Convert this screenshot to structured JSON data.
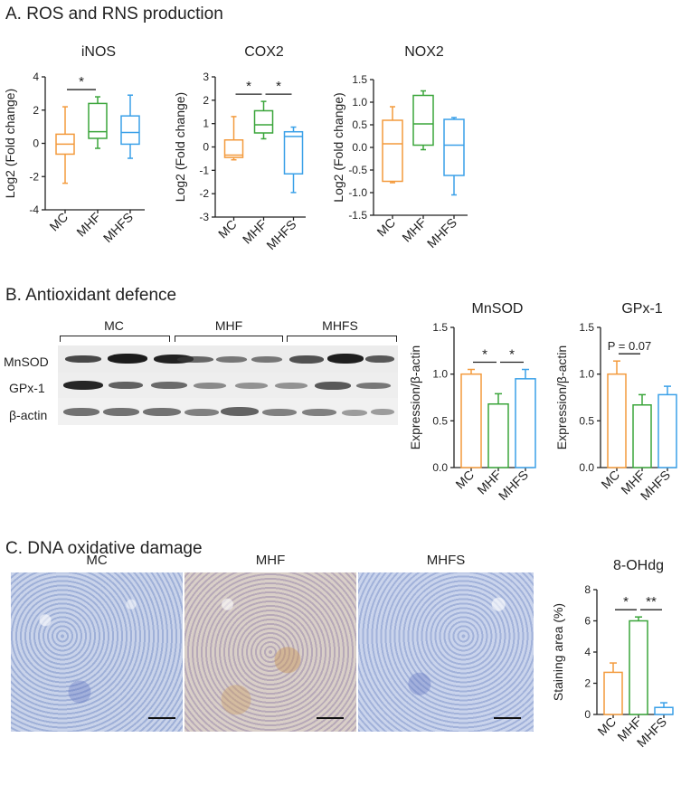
{
  "sections": {
    "a_title": "A. ROS and RNS production",
    "b_title": "B. Antioxidant defence",
    "c_title": "C. DNA oxidative damage"
  },
  "colors": {
    "MC": "#f39a3c",
    "MHF": "#3aa53a",
    "MHFS": "#3aa0e8"
  },
  "western_blot": {
    "groups": [
      "MC",
      "MHF",
      "MHFS"
    ],
    "rows": [
      "MnSOD",
      "GPx-1",
      "β-actin"
    ]
  },
  "micrographs": {
    "labels": [
      "MC",
      "MHF",
      "MHFS"
    ]
  },
  "chart_data": [
    {
      "id": "inos",
      "type": "box",
      "title": "iNOS",
      "ylabel": "Log2 (Fold change)",
      "categories": [
        "MC",
        "MHF",
        "MHFS"
      ],
      "ylim": [
        -4,
        4
      ],
      "yticks": [
        -4,
        -2,
        0,
        2,
        4
      ],
      "boxes": [
        {
          "min": -2.4,
          "q1": -0.65,
          "median": -0.05,
          "q3": 0.55,
          "max": 2.2
        },
        {
          "min": -0.3,
          "q1": 0.3,
          "median": 0.7,
          "q3": 2.4,
          "max": 2.8
        },
        {
          "min": -0.9,
          "q1": -0.05,
          "median": 0.65,
          "q3": 1.65,
          "max": 2.9
        }
      ],
      "significance": [
        {
          "from": 0,
          "to": 1,
          "label": "*"
        }
      ]
    },
    {
      "id": "cox2",
      "type": "box",
      "title": "COX2",
      "ylabel": "Log2 (Fold change)",
      "categories": [
        "MC",
        "MHF",
        "MHFS"
      ],
      "ylim": [
        -3,
        3
      ],
      "yticks": [
        -3,
        -2,
        -1,
        0,
        1,
        2,
        3
      ],
      "boxes": [
        {
          "min": -0.55,
          "q1": -0.45,
          "median": -0.35,
          "q3": 0.3,
          "max": 1.3
        },
        {
          "min": 0.35,
          "q1": 0.6,
          "median": 0.95,
          "q3": 1.55,
          "max": 1.95
        },
        {
          "min": -1.95,
          "q1": -1.15,
          "median": 0.45,
          "q3": 0.65,
          "max": 0.85
        }
      ],
      "significance": [
        {
          "from": 0,
          "to": 1,
          "label": "*"
        },
        {
          "from": 1,
          "to": 2,
          "label": "*"
        }
      ]
    },
    {
      "id": "nox2",
      "type": "box",
      "title": "NOX2",
      "ylabel": "Log2 (Fold change)",
      "categories": [
        "MC",
        "MHF",
        "MHFS"
      ],
      "ylim": [
        -1.5,
        1.5
      ],
      "yticks": [
        -1.5,
        -1.0,
        -0.5,
        0.0,
        0.5,
        1.0,
        1.5
      ],
      "boxes": [
        {
          "min": -0.78,
          "q1": -0.75,
          "median": 0.08,
          "q3": 0.6,
          "max": 0.9
        },
        {
          "min": -0.05,
          "q1": 0.05,
          "median": 0.52,
          "q3": 1.15,
          "max": 1.25
        },
        {
          "min": -1.05,
          "q1": -0.62,
          "median": 0.05,
          "q3": 0.62,
          "max": 0.66
        }
      ],
      "significance": []
    },
    {
      "id": "mnsod",
      "type": "bar",
      "title": "MnSOD",
      "ylabel": "Expression/β-actin",
      "categories": [
        "MC",
        "MHF",
        "MHFS"
      ],
      "ylim": [
        0,
        1.5
      ],
      "yticks": [
        0.0,
        0.5,
        1.0,
        1.5
      ],
      "values": [
        1.0,
        0.68,
        0.95
      ],
      "errors": [
        0.05,
        0.11,
        0.1
      ],
      "significance": [
        {
          "from": 0,
          "to": 1,
          "label": "*"
        },
        {
          "from": 1,
          "to": 2,
          "label": "*"
        }
      ]
    },
    {
      "id": "gpx1",
      "type": "bar",
      "title": "GPx-1",
      "ylabel": "Expression/β-actin",
      "categories": [
        "MC",
        "MHF",
        "MHFS"
      ],
      "ylim": [
        0,
        1.5
      ],
      "yticks": [
        0.0,
        0.5,
        1.0,
        1.5
      ],
      "values": [
        1.0,
        0.67,
        0.78
      ],
      "errors": [
        0.14,
        0.11,
        0.09
      ],
      "significance": [
        {
          "from": 0,
          "to": 1,
          "label": "P = 0.07"
        }
      ]
    },
    {
      "id": "ohdg",
      "type": "bar",
      "title": "8-OHdg",
      "ylabel": "Staining area (%)",
      "categories": [
        "MC",
        "MHF",
        "MHFS"
      ],
      "ylim": [
        0,
        8
      ],
      "yticks": [
        0,
        2,
        4,
        6,
        8
      ],
      "values": [
        2.7,
        6.0,
        0.45
      ],
      "errors": [
        0.6,
        0.25,
        0.3
      ],
      "significance": [
        {
          "from": 0,
          "to": 1,
          "label": "*"
        },
        {
          "from": 1,
          "to": 2,
          "label": "**"
        }
      ]
    }
  ]
}
